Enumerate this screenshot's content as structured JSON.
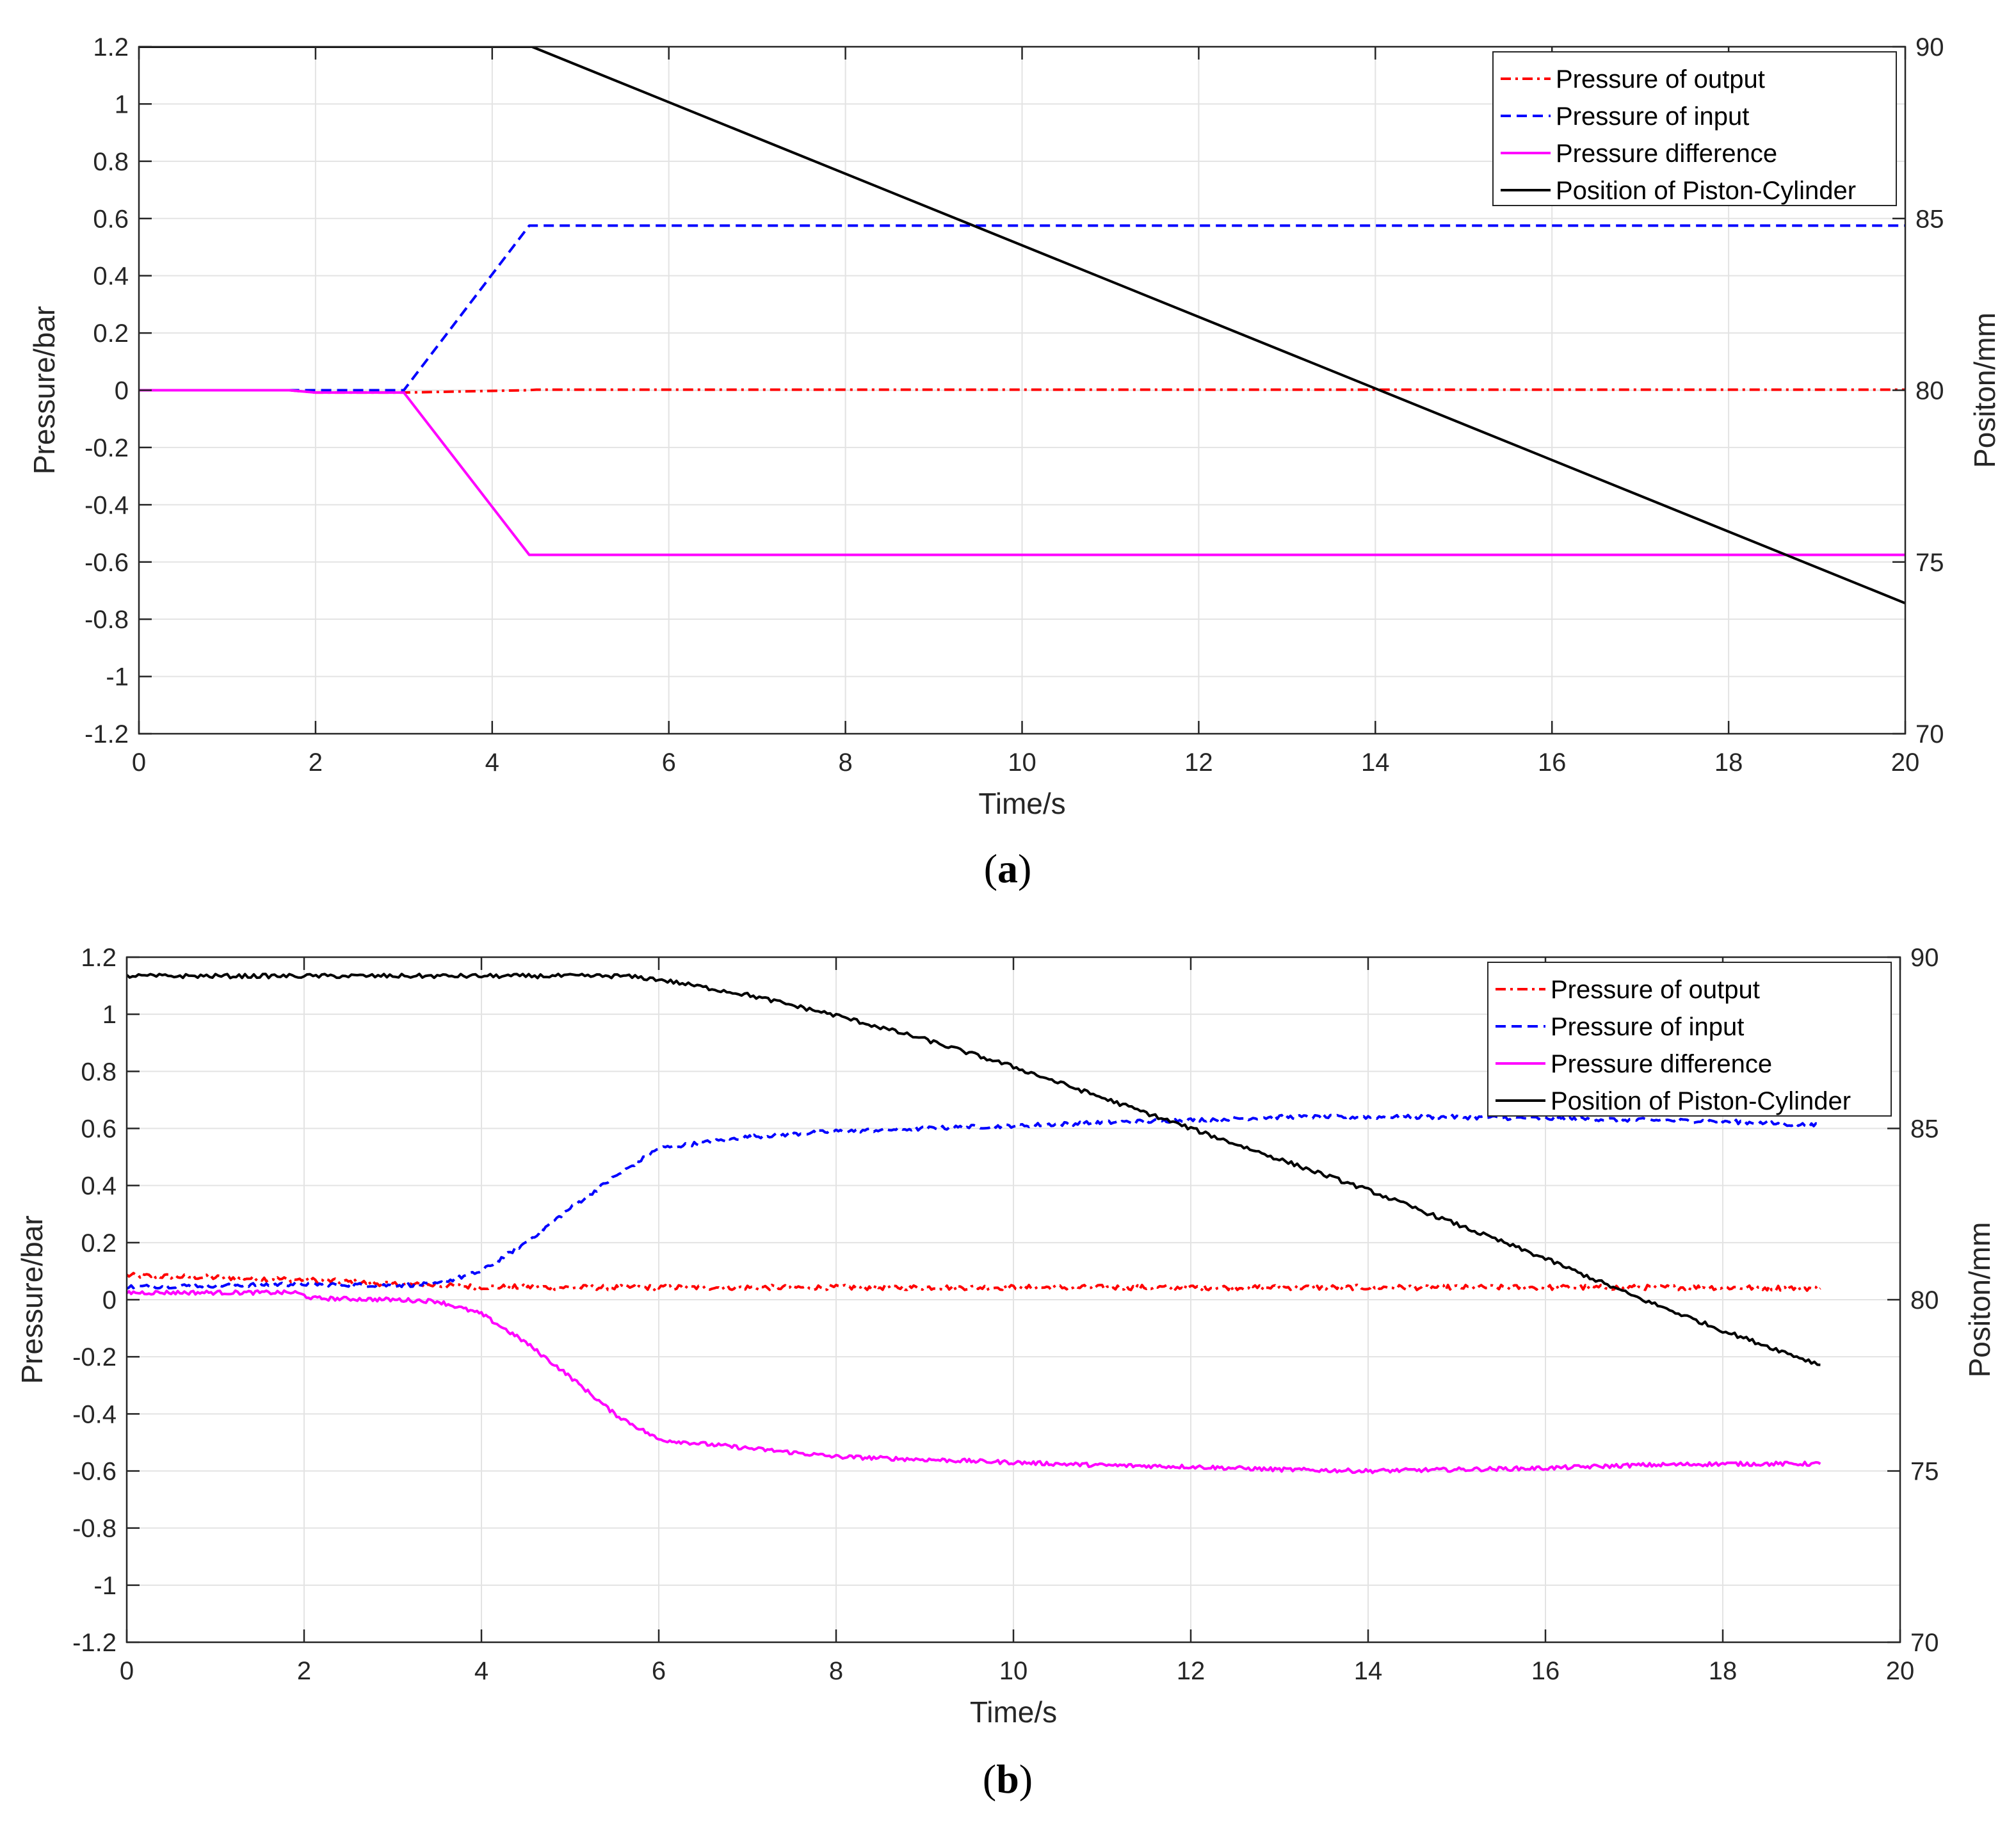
{
  "chart_data": [
    {
      "type": "line",
      "panel": "a",
      "caption": {
        "open": "(",
        "letter": "a",
        "close": ")"
      },
      "xlabel": "Time/s",
      "ylabel": "Pressure/bar",
      "y2label": "Positon/mm",
      "xlim": [
        0,
        20
      ],
      "ylim": [
        -1.2,
        1.2
      ],
      "y2lim": [
        70,
        90
      ],
      "xticks": [
        0,
        2,
        4,
        6,
        8,
        10,
        12,
        14,
        16,
        18,
        20
      ],
      "yticks": [
        -1.2,
        -1,
        -0.8,
        -0.6,
        -0.4,
        -0.2,
        0,
        0.2,
        0.4,
        0.6,
        0.8,
        1,
        1.2
      ],
      "y2ticks": [
        70,
        75,
        80,
        85,
        90
      ],
      "grid": true,
      "legend_position": "top-right",
      "series": [
        {
          "name": "Pressure of output",
          "axis": "left",
          "color": "#ff0000",
          "style": "dashdot",
          "x": [
            0,
            1.7,
            2.0,
            3.0,
            4.4,
            4.5,
            20
          ],
          "y": [
            0,
            0,
            -0.008,
            -0.008,
            0,
            0.002,
            0.002
          ]
        },
        {
          "name": "Pressure of input",
          "axis": "left",
          "color": "#0000ff",
          "style": "dashed",
          "x": [
            1.7,
            3.0,
            4.42,
            20
          ],
          "y": [
            0,
            0,
            0.575,
            0.575
          ]
        },
        {
          "name": "Pressure difference",
          "axis": "left",
          "color": "#ff00ff",
          "style": "solid",
          "x": [
            0,
            1.7,
            2.0,
            3.0,
            4.42,
            20
          ],
          "y": [
            0,
            0,
            -0.008,
            -0.008,
            -0.575,
            -0.575
          ]
        },
        {
          "name": "Position of Piston-Cylinder",
          "axis": "right",
          "color": "#000000",
          "style": "solid",
          "x": [
            0,
            4.45,
            20
          ],
          "y": [
            90,
            90,
            73.8
          ]
        }
      ]
    },
    {
      "type": "line",
      "panel": "b",
      "caption": {
        "open": "(",
        "letter": "b",
        "close": ")"
      },
      "xlabel": "Time/s",
      "ylabel": "Pressure/bar",
      "y2label": "Positon/mm",
      "xlim": [
        0,
        20
      ],
      "ylim": [
        -1.2,
        1.2
      ],
      "y2lim": [
        70,
        90
      ],
      "xticks": [
        0,
        2,
        4,
        6,
        8,
        10,
        12,
        14,
        16,
        18,
        20
      ],
      "yticks": [
        -1.2,
        -1,
        -0.8,
        -0.6,
        -0.4,
        -0.2,
        0,
        0.2,
        0.4,
        0.6,
        0.8,
        1,
        1.2
      ],
      "y2ticks": [
        70,
        75,
        80,
        85,
        90
      ],
      "grid": true,
      "legend_position": "top-right",
      "series": [
        {
          "name": "Pressure of output",
          "axis": "left",
          "color": "#ff0000",
          "style": "dashdot",
          "x": [
            0,
            1,
            2,
            3,
            4,
            5,
            6,
            8,
            10,
            12,
            14,
            16,
            18,
            19.1
          ],
          "y": [
            0.085,
            0.078,
            0.07,
            0.055,
            0.045,
            0.043,
            0.043,
            0.043,
            0.043,
            0.043,
            0.043,
            0.043,
            0.043,
            0.04
          ]
        },
        {
          "name": "Pressure of input",
          "axis": "left",
          "color": "#0000ff",
          "style": "dashed",
          "x": [
            0,
            1,
            2,
            3,
            3.5,
            4,
            4.5,
            5,
            5.5,
            6,
            7,
            8,
            9,
            10,
            11,
            12,
            13,
            14,
            15,
            16,
            17,
            18,
            19.1
          ],
          "y": [
            0.045,
            0.05,
            0.055,
            0.05,
            0.055,
            0.1,
            0.2,
            0.32,
            0.43,
            0.53,
            0.57,
            0.59,
            0.6,
            0.61,
            0.62,
            0.63,
            0.64,
            0.64,
            0.64,
            0.635,
            0.63,
            0.625,
            0.61
          ]
        },
        {
          "name": "Pressure difference",
          "axis": "left",
          "color": "#ff00ff",
          "style": "solid",
          "x": [
            0,
            1,
            1.9,
            2.1,
            3,
            3.5,
            4,
            4.5,
            5,
            5.5,
            6,
            7,
            8,
            9,
            10,
            11,
            12,
            13,
            14,
            15,
            16,
            17,
            18,
            19.1
          ],
          "y": [
            0.025,
            0.025,
            0.025,
            0.005,
            0.0,
            -0.005,
            -0.05,
            -0.15,
            -0.27,
            -0.4,
            -0.49,
            -0.52,
            -0.55,
            -0.56,
            -0.57,
            -0.58,
            -0.585,
            -0.595,
            -0.6,
            -0.595,
            -0.59,
            -0.58,
            -0.575,
            -0.575
          ]
        },
        {
          "name": "Position of Piston-Cylinder",
          "axis": "right",
          "color": "#000000",
          "style": "solid",
          "x": [
            0,
            2,
            4,
            5,
            5.6,
            6,
            7,
            8,
            9,
            10,
            11,
            12,
            13,
            14,
            15,
            16,
            17,
            18,
            19.1
          ],
          "y": [
            89.45,
            89.45,
            89.45,
            89.45,
            89.45,
            89.35,
            88.9,
            88.3,
            87.6,
            86.8,
            85.9,
            85.0,
            84.1,
            83.2,
            82.2,
            81.2,
            80.1,
            79.1,
            78.1
          ]
        }
      ]
    }
  ]
}
